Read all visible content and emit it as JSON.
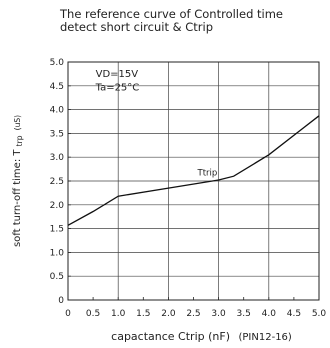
{
  "chart_data": {
    "type": "line",
    "title_lines": [
      "The reference curve of  Controlled time",
      "detect short circuit & Ctrip"
    ],
    "xlabel": "capactance Ctrip (nF)",
    "xlabel_suffix": "(PIN12-16)",
    "ylabel_main": "soft turn-off time: T",
    "ylabel_sub": "trp",
    "ylabel_unit": "(uS)",
    "xlim": [
      0,
      5.0
    ],
    "ylim": [
      0,
      5.0
    ],
    "x_ticks": [
      "0",
      "0.5",
      "1.0",
      "1.5",
      "2.0",
      "2.5",
      "3.0",
      "3.5",
      "4.0",
      "4.5",
      "5.0"
    ],
    "y_ticks": [
      "0",
      "0.5",
      "1.0",
      "1.5",
      "2.0",
      "2.5",
      "3.0",
      "3.5",
      "4.0",
      "4.5",
      "5.0"
    ],
    "grid": true,
    "conditions": [
      "VD=15V",
      "Ta=25°C"
    ],
    "curve_label": "Ttrip",
    "series": [
      {
        "x": [
          0,
          0.5,
          1.0,
          2.0,
          3.0,
          3.3,
          4.0,
          5.0
        ],
        "y": [
          1.57,
          1.86,
          2.18,
          2.35,
          2.52,
          2.6,
          3.05,
          3.87
        ]
      }
    ]
  }
}
